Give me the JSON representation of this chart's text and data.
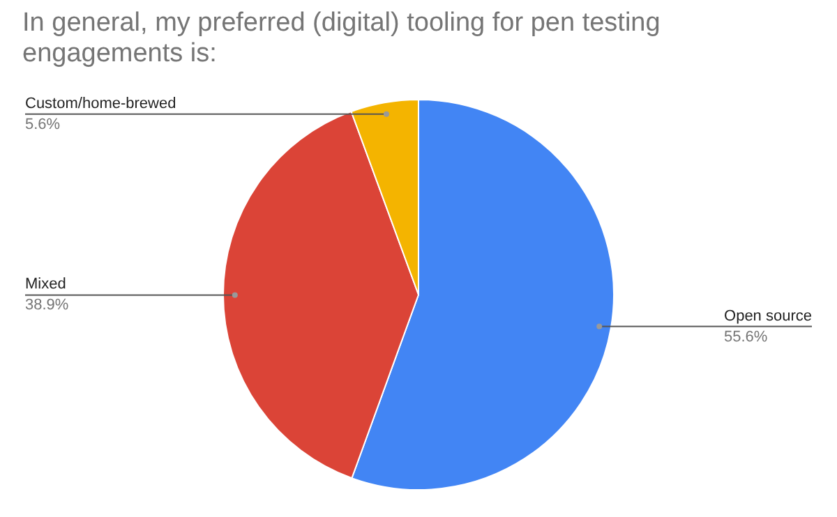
{
  "chart_data": {
    "type": "pie",
    "title": "In general, my preferred (digital) tooling for pen testing engagements is:",
    "categories": [
      "Open source",
      "Mixed",
      "Custom/home-brewed"
    ],
    "values": [
      55.6,
      38.9,
      5.6
    ],
    "value_labels": [
      "55.6%",
      "38.9%",
      "5.6%"
    ],
    "colors": [
      "#4285f4",
      "#db4437",
      "#f4b400"
    ],
    "legend": false
  }
}
